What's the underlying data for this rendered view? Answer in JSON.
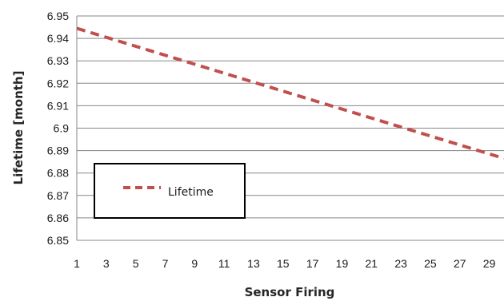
{
  "chart_data": {
    "type": "line",
    "title": "",
    "xlabel": "Sensor Firing",
    "ylabel": "Lifetime [month]",
    "x_ticks": [
      "1",
      "3",
      "5",
      "7",
      "9",
      "11",
      "13",
      "15",
      "17",
      "19",
      "21",
      "23",
      "25",
      "27",
      "29"
    ],
    "y_ticks": [
      "6.95",
      "6.94",
      "6.93",
      "6.92",
      "6.91",
      "6.9",
      "6.89",
      "6.88",
      "6.87",
      "6.86",
      "6.85"
    ],
    "xlim": [
      1,
      30
    ],
    "ylim": [
      6.85,
      6.95
    ],
    "grid": "horizontal",
    "legend_position": "left-lower",
    "series": [
      {
        "name": "Lifetime",
        "color": "#c0504d",
        "style": "dashed",
        "x": [
          1,
          30
        ],
        "y": [
          6.9445,
          6.8865
        ]
      }
    ]
  }
}
